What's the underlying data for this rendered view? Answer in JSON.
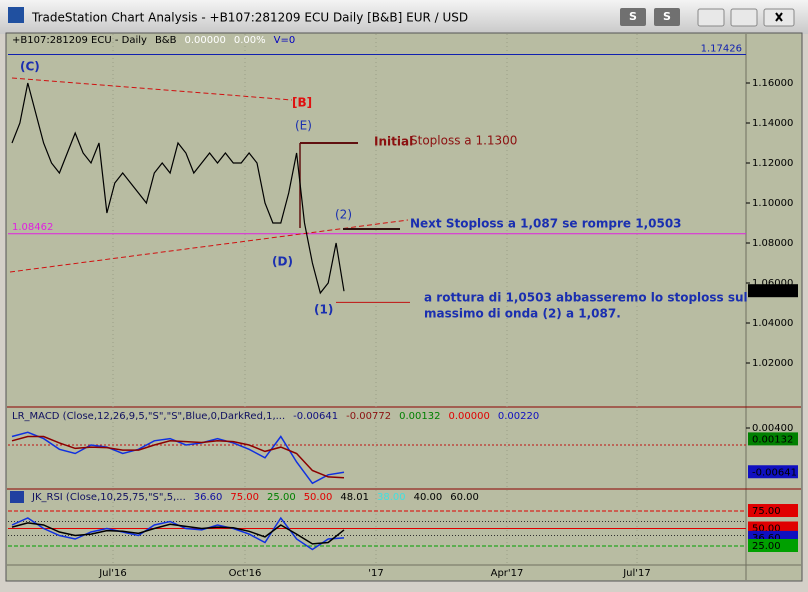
{
  "window": {
    "title": "TradeStation Chart Analysis - +B107:281209 ECU Daily [B&B] EUR / USD",
    "buttons": [
      "S",
      "S"
    ]
  },
  "x_axis": {
    "labels": [
      "Jul'16",
      "Oct'16",
      "'17",
      "Apr'17",
      "Jul'17"
    ]
  },
  "chart_data": [
    {
      "type": "line",
      "header": [
        {
          "text": "+B107:281209 ECU - Daily",
          "color": "#000000"
        },
        {
          "text": "B&B",
          "color": "#000000"
        },
        {
          "text": "0.00000",
          "color": "#ffffff"
        },
        {
          "text": "0.00%",
          "color": "#ffffff"
        },
        {
          "text": "V=0",
          "color": "#0000c0"
        }
      ],
      "series": [
        {
          "color": "#000000",
          "values": [
            1.13,
            1.14,
            1.16,
            1.145,
            1.13,
            1.12,
            1.115,
            1.125,
            1.135,
            1.125,
            1.12,
            1.13,
            1.095,
            1.11,
            1.115,
            1.11,
            1.105,
            1.1,
            1.115,
            1.12,
            1.115,
            1.13,
            1.125,
            1.115,
            1.12,
            1.125,
            1.12,
            1.125,
            1.12,
            1.12,
            1.125,
            1.12,
            1.1,
            1.09,
            1.09,
            1.105,
            1.125,
            1.09,
            1.07,
            1.055,
            1.06,
            1.08,
            1.0559
          ]
        }
      ],
      "ylim": [
        0.999,
        1.1845
      ],
      "yticks": [
        {
          "value": 1.16,
          "label": "1.16000"
        },
        {
          "value": 1.14,
          "label": "1.14000"
        },
        {
          "value": 1.12,
          "label": "1.12000"
        },
        {
          "value": 1.1,
          "label": "1.10000"
        },
        {
          "value": 1.08,
          "label": "1.08000"
        },
        {
          "value": 1.06,
          "label": "1.06000"
        },
        {
          "value": 1.04,
          "label": "1.04000"
        },
        {
          "value": 1.02,
          "label": "1.02000"
        }
      ],
      "last_price": {
        "value": 1.0559,
        "label": "1.05590"
      },
      "levels": [
        {
          "value": 1.08462,
          "label": "1.08462",
          "color": "#e020e0"
        },
        {
          "value": 1.17426,
          "label": "1.17426",
          "color": "#1020b0"
        }
      ],
      "stoploss_levels": [
        1.13,
        1.087,
        1.0503
      ],
      "annotations": [
        {
          "text": "(C)",
          "color": "#1a2fb0"
        },
        {
          "text": "[B]",
          "color": "#e01010"
        },
        {
          "text": "(E)",
          "color": "#1a2fb0"
        },
        {
          "text": "Initial",
          "color": "#8b1010"
        },
        {
          "text": "Stoploss a 1.1300",
          "color": "#8b1010"
        },
        {
          "text": "(2)",
          "color": "#1a2fb0"
        },
        {
          "text": "Next Stoploss a 1,087 se rompre 1,0503",
          "color": "#1a2fb0"
        },
        {
          "text": "(D)",
          "color": "#1a2fb0"
        },
        {
          "text": "(1)",
          "color": "#1a2fb0"
        },
        {
          "text": "a rottura di 1,0503 abbasseremo lo stoploss sul",
          "color": "#1a2fb0"
        },
        {
          "text": "massimo di onda (2) a 1,087.",
          "color": "#1a2fb0"
        }
      ]
    },
    {
      "type": "line",
      "header": [
        {
          "text": "LR_MACD (Close,12,26,9,5,\"S\",\"S\",Blue,0,DarkRed,1,...",
          "color": "#101060"
        },
        {
          "text": "-0.00641",
          "color": "#101080"
        },
        {
          "text": "-0.00772",
          "color": "#8b1010"
        },
        {
          "text": "0.00132",
          "color": "#008000"
        },
        {
          "text": "0.00000",
          "color": "#e00000"
        },
        {
          "text": "0.00220",
          "color": "#1010c0"
        }
      ],
      "series": [
        {
          "color": "#1030e0",
          "values": [
            0.002,
            0.003,
            0.0015,
            -0.001,
            -0.002,
            0.0,
            -0.0005,
            -0.002,
            -0.001,
            0.001,
            0.0015,
            0.0,
            0.0005,
            0.0015,
            0.0005,
            -0.001,
            -0.003,
            0.002,
            -0.004,
            -0.009,
            -0.007,
            -0.0064
          ]
        },
        {
          "color": "#8b0000",
          "values": [
            0.001,
            0.002,
            0.002,
            0.0005,
            -0.0008,
            -0.0005,
            -0.0006,
            -0.0012,
            -0.0012,
            0.0,
            0.001,
            0.0008,
            0.0006,
            0.001,
            0.0008,
            0.0,
            -0.0015,
            -0.0005,
            -0.002,
            -0.006,
            -0.0075,
            -0.0077
          ]
        }
      ],
      "ylim": [
        -0.00988,
        0.00847
      ],
      "yticks": [
        {
          "value": 0.004,
          "label": "0.00400"
        }
      ],
      "axis_labels": [
        {
          "value": 0.00132,
          "label": "0.00132",
          "color": "#008000"
        },
        {
          "value": -0.00641,
          "label": "-0.00641",
          "color": "#1010c0"
        }
      ]
    },
    {
      "type": "line",
      "header": [
        {
          "text": "JK_RSI (Close,10,25,75,\"S\",5,...",
          "color": "#101060"
        },
        {
          "text": "36.60",
          "color": "#1010a0"
        },
        {
          "text": "75.00",
          "color": "#e00000"
        },
        {
          "text": "25.00",
          "color": "#008000"
        },
        {
          "text": "50.00",
          "color": "#e00000"
        },
        {
          "text": "48.01",
          "color": "#000000"
        },
        {
          "text": "38.00",
          "color": "#40e0e0"
        },
        {
          "text": "40.00",
          "color": "#000000"
        },
        {
          "text": "60.00",
          "color": "#000000"
        }
      ],
      "series": [
        {
          "color": "#1030e0",
          "values": [
            55,
            65,
            50,
            40,
            35,
            45,
            50,
            45,
            40,
            55,
            60,
            50,
            48,
            55,
            50,
            42,
            30,
            65,
            35,
            20,
            35,
            36.6
          ]
        },
        {
          "color": "#000000",
          "values": [
            52,
            58,
            55,
            45,
            40,
            42,
            47,
            46,
            43,
            50,
            56,
            53,
            50,
            52,
            51,
            46,
            38,
            55,
            42,
            28,
            30,
            48.01
          ]
        }
      ],
      "ylim": [
        0.7,
        103.6
      ],
      "levels": [
        {
          "value": 75,
          "color": "#e00000"
        },
        {
          "value": 60,
          "color": "#303030"
        },
        {
          "value": 50,
          "color": "#e00000"
        },
        {
          "value": 40,
          "color": "#303030"
        },
        {
          "value": 25,
          "color": "#00a000"
        }
      ],
      "axis_labels": [
        {
          "value": 75,
          "label": "75.00",
          "color": "#e00000"
        },
        {
          "value": 50,
          "label": "50.00",
          "color": "#e00000"
        },
        {
          "value": 36.6,
          "label": "36.60",
          "color": "#1010c0"
        },
        {
          "value": 25,
          "label": "25.00",
          "color": "#00a000"
        }
      ]
    }
  ]
}
